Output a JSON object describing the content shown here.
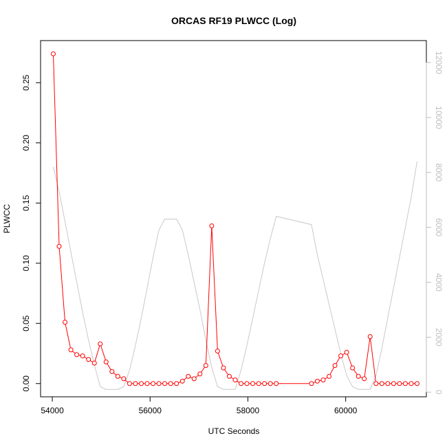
{
  "chart_data": {
    "type": "line",
    "title": "ORCAS RF19 PLWCC (Log)",
    "xlabel": "UTC Seconds",
    "ylabel": "PLWCC",
    "y2label": "",
    "xlim": [
      53760,
      61650
    ],
    "ylim": [
      -0.011,
      0.285
    ],
    "y2lim": [
      -170,
      12800
    ],
    "xticks": [
      54000,
      56000,
      58000,
      60000
    ],
    "xtick_labels": [
      "54000",
      "56000",
      "58000",
      "60000"
    ],
    "yticks": [
      0.0,
      0.05,
      0.1,
      0.15,
      0.2,
      0.25
    ],
    "ytick_labels": [
      "0.00",
      "0.05",
      "0.10",
      "0.15",
      "0.20",
      "0.25"
    ],
    "y2ticks": [
      0,
      2000,
      4000,
      6000,
      8000,
      10000,
      12000
    ],
    "y2tick_labels": [
      "0",
      "2000",
      "4000",
      "6000",
      "8000",
      "10000",
      "12000"
    ],
    "grid": false,
    "colors": {
      "primary": "#ff0000",
      "secondary": "#c8c8c8",
      "axis": "#000000",
      "axis2": "#bebebe"
    },
    "series": [
      {
        "axis": "left",
        "style": "line+points",
        "x": [
          54020,
          54140,
          54260,
          54380,
          54500,
          54620,
          54740,
          54860,
          54980,
          55100,
          55220,
          55340,
          55460,
          55580,
          55700,
          55820,
          55940,
          56060,
          56180,
          56300,
          56420,
          56540,
          56660,
          56780,
          56900,
          57020,
          57140,
          57260,
          57380,
          57500,
          57620,
          57740,
          57860,
          57980,
          58100,
          58220,
          58340,
          58460,
          58580,
          59300,
          59420,
          59540,
          59660,
          59780,
          59900,
          60020,
          60140,
          60260,
          60380,
          60500,
          60620,
          60740,
          60860,
          60980,
          61100,
          61220,
          61340,
          61460
        ],
        "values": [
          0.274,
          0.114,
          0.051,
          0.028,
          0.024,
          0.023,
          0.02,
          0.017,
          0.033,
          0.018,
          0.01,
          0.006,
          0.004,
          0.0,
          0.0,
          0.0,
          0.0,
          0.0,
          0.0,
          0.0,
          0.0,
          0.0,
          0.002,
          0.006,
          0.004,
          0.008,
          0.015,
          0.131,
          0.027,
          0.013,
          0.006,
          0.003,
          0.0,
          0.0,
          0.0,
          0.0,
          0.0,
          0.0,
          0.0,
          0.0,
          0.002,
          0.003,
          0.006,
          0.015,
          0.023,
          0.026,
          0.013,
          0.006,
          0.004,
          0.039,
          0.0,
          0.0,
          0.0,
          0.0,
          0.0,
          0.0,
          0.0,
          0.0
        ]
      },
      {
        "axis": "right",
        "style": "line",
        "x": [
          54020,
          54140,
          54260,
          54380,
          54500,
          54620,
          54740,
          54860,
          54980,
          55100,
          55220,
          55340,
          55460,
          55580,
          55700,
          55820,
          55940,
          56060,
          56180,
          56300,
          56420,
          56540,
          56660,
          56780,
          56900,
          57020,
          57140,
          57260,
          57380,
          57500,
          57620,
          57740,
          57860,
          57980,
          58100,
          58220,
          58340,
          58460,
          58580,
          59300,
          59420,
          59540,
          59660,
          59780,
          59900,
          60020,
          60140,
          60260,
          60380,
          60500,
          60620,
          60740,
          60860,
          60980,
          61100,
          61220,
          61340,
          61460
        ],
        "values": [
          8200,
          7300,
          6200,
          5100,
          4000,
          2900,
          1900,
          1000,
          200,
          100,
          100,
          100,
          200,
          800,
          1700,
          2700,
          3800,
          4900,
          5900,
          6300,
          6300,
          6300,
          5900,
          5000,
          4000,
          3000,
          1900,
          900,
          200,
          100,
          100,
          100,
          800,
          1700,
          2700,
          3700,
          4700,
          5600,
          6400,
          6100,
          5000,
          4100,
          3200,
          2300,
          1400,
          600,
          200,
          100,
          100,
          100,
          600,
          1600,
          2700,
          3800,
          4900,
          6000,
          7100,
          8400
        ]
      }
    ]
  }
}
